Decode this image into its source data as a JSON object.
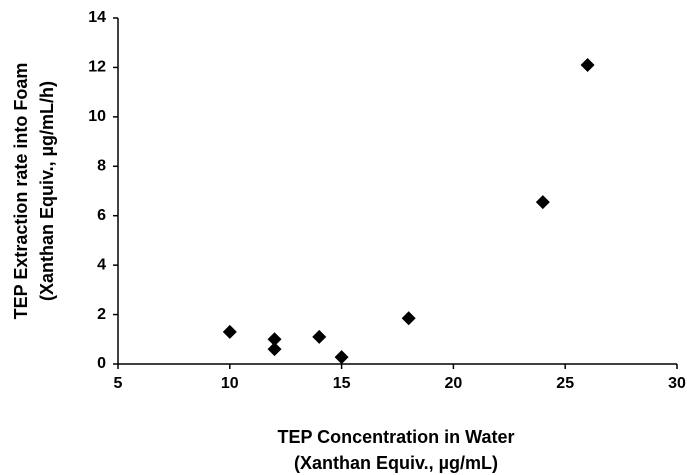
{
  "chart_data": {
    "type": "scatter",
    "xlabel": [
      "TEP Concentration in Water",
      "(Xanthan Equiv., µg/mL)"
    ],
    "ylabel": [
      "TEP Extraction rate into Foam",
      "(Xanthan Equiv., µg/mL/h)"
    ],
    "x": [
      10,
      12,
      12,
      14,
      15,
      18,
      24,
      26
    ],
    "series": [
      {
        "name": "TEP",
        "color": "#000000",
        "values": [
          1.3,
          1.0,
          0.6,
          1.1,
          0.28,
          1.85,
          6.55,
          12.1
        ]
      }
    ],
    "xlim": [
      5,
      30
    ],
    "xticks": [
      5,
      10,
      15,
      20,
      25,
      30
    ],
    "ylim": [
      0,
      14
    ],
    "yticks": [
      0,
      2,
      4,
      6,
      8,
      10,
      12,
      14
    ],
    "grid": false
  }
}
